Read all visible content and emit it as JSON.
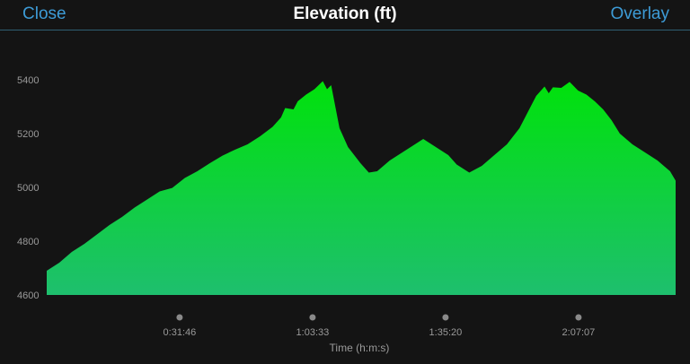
{
  "header": {
    "close_label": "Close",
    "title": "Elevation (ft)",
    "overlay_label": "Overlay"
  },
  "colors": {
    "accent": "#3d9bd6",
    "area_top": "#00e20b",
    "area_bottom": "#1ebf6e",
    "background": "#141414"
  },
  "chart_data": {
    "type": "area",
    "xlabel": "Time (h:m:s)",
    "ylabel": "",
    "ylim": [
      4600,
      5400
    ],
    "yticks": [
      4600,
      4800,
      5000,
      5200,
      5400
    ],
    "xlim_seconds": [
      0,
      9020
    ],
    "xticks": [
      {
        "label": "0:31:46",
        "seconds": 1906
      },
      {
        "label": "1:03:33",
        "seconds": 3813
      },
      {
        "label": "1:35:20",
        "seconds": 5720
      },
      {
        "label": "2:07:07",
        "seconds": 7627
      }
    ],
    "points": [
      [
        "0:00:00",
        4690
      ],
      [
        "0:03:00",
        4720
      ],
      [
        "0:06:00",
        4760
      ],
      [
        "0:09:00",
        4790
      ],
      [
        "0:12:00",
        4825
      ],
      [
        "0:15:00",
        4860
      ],
      [
        "0:18:00",
        4890
      ],
      [
        "0:21:00",
        4925
      ],
      [
        "0:24:00",
        4955
      ],
      [
        "0:27:00",
        4985
      ],
      [
        "0:30:00",
        4998
      ],
      [
        "0:33:00",
        5035
      ],
      [
        "0:36:00",
        5060
      ],
      [
        "0:39:00",
        5090
      ],
      [
        "0:42:00",
        5118
      ],
      [
        "0:45:00",
        5140
      ],
      [
        "0:48:00",
        5160
      ],
      [
        "0:51:00",
        5190
      ],
      [
        "0:54:00",
        5225
      ],
      [
        "0:56:00",
        5260
      ],
      [
        "0:57:00",
        5295
      ],
      [
        "0:59:00",
        5290
      ],
      [
        "1:00:00",
        5320
      ],
      [
        "1:02:00",
        5345
      ],
      [
        "1:04:00",
        5365
      ],
      [
        "1:06:00",
        5395
      ],
      [
        "1:07:00",
        5365
      ],
      [
        "1:08:00",
        5380
      ],
      [
        "1:10:00",
        5220
      ],
      [
        "1:12:00",
        5150
      ],
      [
        "1:15:00",
        5090
      ],
      [
        "1:17:00",
        5055
      ],
      [
        "1:19:00",
        5060
      ],
      [
        "1:22:00",
        5100
      ],
      [
        "1:25:00",
        5130
      ],
      [
        "1:28:00",
        5160
      ],
      [
        "1:30:00",
        5180
      ],
      [
        "1:32:00",
        5160
      ],
      [
        "1:34:00",
        5140
      ],
      [
        "1:36:00",
        5120
      ],
      [
        "1:38:00",
        5085
      ],
      [
        "1:41:00",
        5055
      ],
      [
        "1:44:00",
        5080
      ],
      [
        "1:47:00",
        5120
      ],
      [
        "1:50:00",
        5160
      ],
      [
        "1:53:00",
        5220
      ],
      [
        "1:55:00",
        5280
      ],
      [
        "1:57:00",
        5340
      ],
      [
        "1:59:00",
        5375
      ],
      [
        "2:00:00",
        5350
      ],
      [
        "2:01:00",
        5372
      ],
      [
        "2:03:00",
        5370
      ],
      [
        "2:05:00",
        5392
      ],
      [
        "2:07:00",
        5360
      ],
      [
        "2:09:00",
        5345
      ],
      [
        "2:11:00",
        5320
      ],
      [
        "2:13:00",
        5290
      ],
      [
        "2:15:00",
        5250
      ],
      [
        "2:17:00",
        5200
      ],
      [
        "2:20:00",
        5160
      ],
      [
        "2:23:00",
        5130
      ],
      [
        "2:26:00",
        5100
      ],
      [
        "2:29:00",
        5060
      ],
      [
        "2:30:20",
        5025
      ]
    ]
  }
}
